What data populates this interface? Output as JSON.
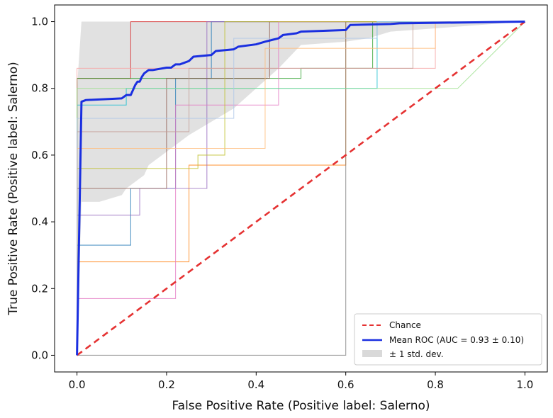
{
  "chart_data": {
    "type": "line",
    "title": "",
    "xlabel": "False Positive Rate (Positive label: Salerno)",
    "ylabel": "True Positive Rate (Positive label: Salerno)",
    "xlim": [
      -0.05,
      1.05
    ],
    "ylim": [
      -0.05,
      1.05
    ],
    "x_ticks": [
      0.0,
      0.2,
      0.4,
      0.6,
      0.8,
      1.0
    ],
    "y_ticks": [
      0.0,
      0.2,
      0.4,
      0.6,
      0.8,
      1.0
    ],
    "x_tick_labels": [
      "0.0",
      "0.2",
      "0.4",
      "0.6",
      "0.8",
      "1.0"
    ],
    "y_tick_labels": [
      "0.0",
      "0.2",
      "0.4",
      "0.6",
      "0.8",
      "1.0"
    ],
    "grid": false,
    "legend_position": "lower-right",
    "legend": [
      {
        "label": "Chance",
        "style": "dashed",
        "color": "#e53232"
      },
      {
        "label": "Mean ROC (AUC = 0.93 ± 0.10)",
        "style": "solid",
        "color": "#1a2fe0"
      },
      {
        "label": "± 1 std. dev.",
        "style": "band",
        "color": "#d9d9d9"
      }
    ],
    "chance_line": {
      "name": "Chance",
      "color": "#e53232",
      "x": [
        0,
        1
      ],
      "y": [
        0,
        1
      ]
    },
    "mean_roc": {
      "name": "Mean ROC (AUC = 0.93 ± 0.10)",
      "color": "#1a2fe0",
      "auc": 0.93,
      "auc_std": 0.1,
      "x": [
        0.0,
        0.01,
        0.02,
        0.1,
        0.11,
        0.12,
        0.125,
        0.13,
        0.135,
        0.14,
        0.145,
        0.15,
        0.16,
        0.17,
        0.2,
        0.21,
        0.22,
        0.23,
        0.25,
        0.26,
        0.3,
        0.31,
        0.35,
        0.36,
        0.4,
        0.42,
        0.45,
        0.46,
        0.49,
        0.5,
        0.6,
        0.61,
        0.7,
        0.72,
        1.0
      ],
      "y": [
        0.0,
        0.76,
        0.765,
        0.77,
        0.78,
        0.78,
        0.795,
        0.81,
        0.82,
        0.82,
        0.835,
        0.845,
        0.855,
        0.855,
        0.862,
        0.862,
        0.872,
        0.872,
        0.882,
        0.895,
        0.9,
        0.912,
        0.917,
        0.925,
        0.932,
        0.94,
        0.95,
        0.96,
        0.965,
        0.97,
        0.975,
        0.99,
        0.993,
        0.995,
        1.0
      ]
    },
    "std_band": {
      "name": "± 1 std. dev.",
      "color": "#d9d9d9",
      "x": [
        0.0,
        0.01,
        0.05,
        0.1,
        0.11,
        0.15,
        0.16,
        0.2,
        0.25,
        0.35,
        0.45,
        0.5,
        0.6,
        0.65,
        0.7,
        0.8,
        1.0
      ],
      "upper": [
        0.8,
        1.0,
        1.0,
        1.0,
        1.0,
        1.0,
        1.0,
        1.0,
        1.0,
        1.0,
        1.0,
        1.0,
        1.0,
        1.0,
        1.0,
        1.0,
        1.0
      ],
      "lower": [
        0.0,
        0.46,
        0.46,
        0.48,
        0.5,
        0.54,
        0.57,
        0.61,
        0.66,
        0.74,
        0.86,
        0.93,
        0.94,
        0.95,
        0.97,
        0.98,
        1.0
      ]
    },
    "fold_curves": [
      {
        "color": "#d62728",
        "x": [
          0,
          0,
          0.12,
          0.12,
          1
        ],
        "y": [
          0,
          0.83,
          0.83,
          1,
          1
        ]
      },
      {
        "color": "#1f77b4",
        "x": [
          0,
          0,
          0.12,
          0.12,
          0.22,
          0.22,
          0.3,
          0.3,
          1
        ],
        "y": [
          0,
          0.33,
          0.33,
          0.5,
          0.5,
          0.83,
          0.83,
          1,
          1
        ]
      },
      {
        "color": "#ff7f0e",
        "x": [
          0,
          0,
          0.25,
          0.25,
          0.6,
          0.6,
          1
        ],
        "y": [
          0,
          0.28,
          0.28,
          0.57,
          0.57,
          1,
          1
        ]
      },
      {
        "color": "#2ca02c",
        "x": [
          0,
          0,
          0.5,
          0.5,
          0.66,
          0.66,
          1
        ],
        "y": [
          0,
          0.83,
          0.83,
          0.86,
          0.86,
          1,
          1
        ]
      },
      {
        "color": "#9467bd",
        "x": [
          0,
          0,
          0.14,
          0.14,
          0.29,
          0.29,
          1
        ],
        "y": [
          0,
          0.42,
          0.42,
          0.5,
          0.5,
          1,
          1
        ]
      },
      {
        "color": "#8c564b",
        "x": [
          0,
          0,
          0.2,
          0.2,
          0.43,
          0.43,
          1
        ],
        "y": [
          0,
          0.5,
          0.5,
          0.83,
          0.83,
          1,
          1
        ]
      },
      {
        "color": "#e377c2",
        "x": [
          0,
          0,
          0.22,
          0.22,
          0.45,
          0.45,
          1
        ],
        "y": [
          0,
          0.17,
          0.17,
          0.75,
          0.75,
          1,
          1
        ]
      },
      {
        "color": "#7f7f7f",
        "x": [
          0,
          0,
          0.6,
          0.6,
          1
        ],
        "y": [
          0,
          0.0,
          0.0,
          1,
          1
        ]
      },
      {
        "color": "#bcbd22",
        "x": [
          0,
          0,
          0.27,
          0.27,
          0.33,
          0.33,
          1
        ],
        "y": [
          0,
          0.56,
          0.56,
          0.6,
          0.6,
          1,
          1
        ]
      },
      {
        "color": "#17becf",
        "x": [
          0,
          0,
          0.11,
          0.11,
          0.67,
          0.67,
          1
        ],
        "y": [
          0,
          0.75,
          0.75,
          0.8,
          0.8,
          1,
          1
        ]
      },
      {
        "color": "#f5a3a3",
        "x": [
          0,
          0,
          0.5,
          0.5,
          0.8,
          0.8,
          1
        ],
        "y": [
          0,
          0.86,
          0.86,
          0.86,
          0.86,
          1,
          1
        ]
      },
      {
        "color": "#98df8a",
        "x": [
          0,
          0,
          0.8,
          0.85,
          1
        ],
        "y": [
          0,
          0.8,
          0.8,
          0.8,
          1
        ]
      },
      {
        "color": "#c49c94",
        "x": [
          0,
          0,
          0.25,
          0.25,
          0.75,
          0.75,
          1
        ],
        "y": [
          0,
          0.67,
          0.67,
          0.86,
          0.86,
          1,
          1
        ]
      },
      {
        "color": "#ffbb78",
        "x": [
          0,
          0,
          0.42,
          0.42,
          0.8,
          0.8,
          1
        ],
        "y": [
          0,
          0.62,
          0.62,
          0.92,
          0.92,
          1,
          1
        ]
      },
      {
        "color": "#aec7e8",
        "x": [
          0,
          0,
          0.35,
          0.35,
          0.67,
          0.67,
          1
        ],
        "y": [
          0,
          0.71,
          0.71,
          0.95,
          0.95,
          1,
          1
        ]
      }
    ]
  }
}
